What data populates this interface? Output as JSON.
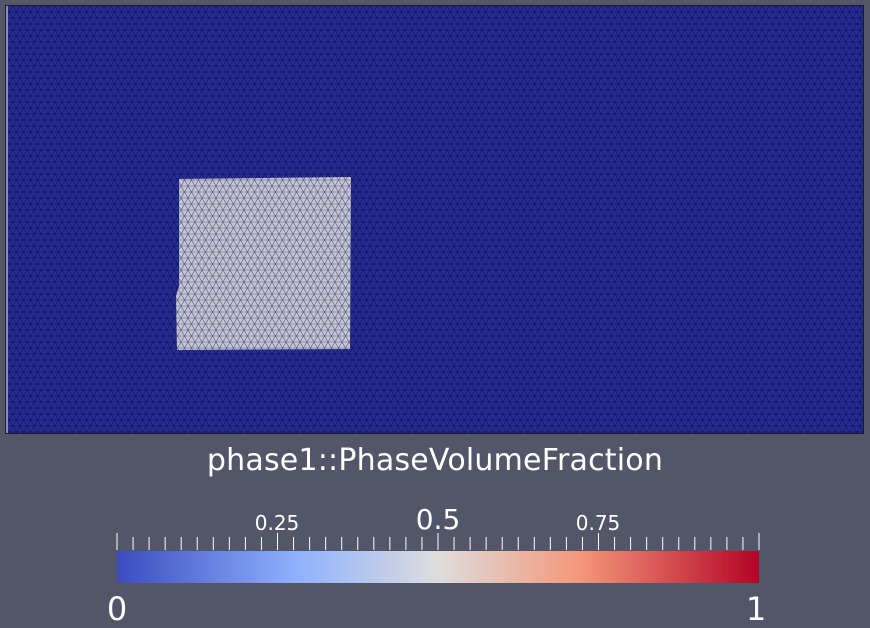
{
  "scalar_bar": {
    "title": "phase1::PhaseVolumeFraction",
    "range": [
      0,
      1
    ],
    "labels": {
      "min": "0",
      "q1": "0.25",
      "mid": "0.5",
      "q3": "0.75",
      "max": "1"
    },
    "colormap": "Cool to Warm",
    "color_low": "#3b4cc0",
    "color_mid": "#dddddd",
    "color_high": "#b40426"
  },
  "field": {
    "background_value": 0,
    "inclusion_value": 0.5,
    "mesh": "triangular",
    "background_color": "#2a2f8f",
    "inclusion_color": "#c6c6d2",
    "edge_color": "#0b0f6a"
  }
}
